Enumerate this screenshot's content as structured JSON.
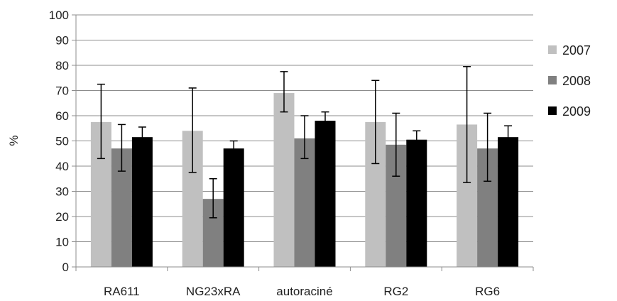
{
  "chart_data": {
    "type": "bar",
    "title": "",
    "xlabel": "",
    "ylabel": "%",
    "ylim": [
      0,
      100
    ],
    "yticks": [
      0,
      10,
      20,
      30,
      40,
      50,
      60,
      70,
      80,
      90,
      100
    ],
    "grid": true,
    "legend_position": "right",
    "categories": [
      "RA611",
      "NG23xRA",
      "autoraciné",
      "RG2",
      "RG6"
    ],
    "series": [
      {
        "name": "2007",
        "color": "#c0c0c0",
        "values": [
          57.5,
          54,
          69,
          57.5,
          56.5
        ],
        "error_low": [
          43,
          37.5,
          61.5,
          41,
          33.5
        ],
        "error_high": [
          72.5,
          71,
          77.5,
          74,
          79.5
        ]
      },
      {
        "name": "2008",
        "color": "#808080",
        "values": [
          47,
          27,
          51,
          48.5,
          47
        ],
        "error_low": [
          38,
          19.5,
          43,
          36,
          34
        ],
        "error_high": [
          56.5,
          35,
          60,
          61,
          61
        ]
      },
      {
        "name": "2009",
        "color": "#000000",
        "values": [
          51.5,
          47,
          58,
          50.5,
          51.5
        ],
        "error_low": [
          48,
          44,
          54.5,
          47,
          47.5
        ],
        "error_high": [
          55.5,
          50,
          61.5,
          54,
          56
        ]
      }
    ]
  }
}
